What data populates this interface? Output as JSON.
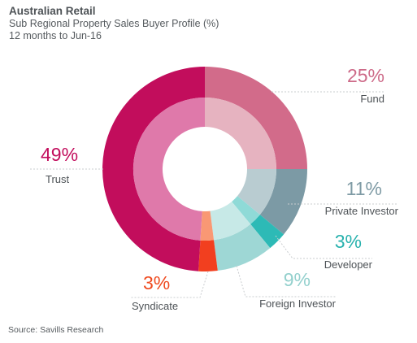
{
  "header": {
    "title": "Australian Retail",
    "subtitle": "Sub Regional Property Sales Buyer Profile (%)",
    "period": "12 months to Jun-16"
  },
  "footer": {
    "source": "Source: Savills Research"
  },
  "chart_data": {
    "type": "pie",
    "title": "Australian Retail",
    "subtitle": "Sub Regional Property Sales Buyer Profile (%)",
    "categories": [
      "Fund",
      "Private Investor",
      "Developer",
      "Foreign Investor",
      "Syndicate",
      "Trust"
    ],
    "values": [
      25,
      11,
      3,
      9,
      3,
      49
    ],
    "value_labels": [
      "25%",
      "11%",
      "3%",
      "9%",
      "3%",
      "49%"
    ],
    "colors": {
      "outer": [
        "#d26b8a",
        "#7c9aa5",
        "#2dbab6",
        "#9ed7d5",
        "#f23f1f",
        "#c20d5c"
      ],
      "inner": [
        "#e6b3c0",
        "#b9ccd1",
        "#8fdad7",
        "#c7e9e7",
        "#f99874",
        "#df79aa"
      ],
      "pct": [
        "#cd6a88",
        "#7f9ba5",
        "#29b2ae",
        "#93d0cd",
        "#ef4a1f",
        "#c20d5c"
      ]
    },
    "style": "double-ring donut",
    "legend": "none (direct labels)"
  }
}
